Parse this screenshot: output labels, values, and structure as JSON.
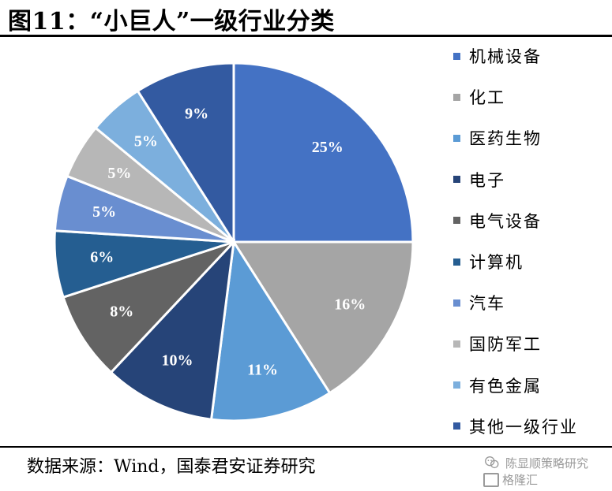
{
  "header": {
    "title": "图11：“小巨人”一级行业分类"
  },
  "chart_data": {
    "type": "pie",
    "categories": [
      "机械设备",
      "化工",
      "医药生物",
      "电子",
      "电气设备",
      "计算机",
      "汽车",
      "国防军工",
      "有色金属",
      "其他一级行业"
    ],
    "values": [
      25,
      16,
      11,
      10,
      8,
      6,
      5,
      5,
      5,
      9
    ],
    "labels": [
      "25%",
      "16%",
      "11%",
      "10%",
      "8%",
      "6%",
      "5%",
      "5%",
      "5%",
      "9%"
    ],
    "colors": [
      "#4472C4",
      "#A5A5A5",
      "#5B9BD5",
      "#264478",
      "#636363",
      "#255E91",
      "#698ED0",
      "#B7B7B7",
      "#7CAFDD",
      "#335AA1"
    ],
    "label_colors": [
      "#ffffff",
      "#ffffff",
      "#ffffff",
      "#ffffff",
      "#ffffff",
      "#ffffff",
      "#ffffff",
      "#ffffff",
      "#ffffff",
      "#ffffff"
    ],
    "legend_position": "right"
  },
  "footer": {
    "source": "数据来源：Wind，国泰君安证券研究",
    "watermark_line1": "陈显顺策略研究",
    "watermark_line2": "格隆汇"
  }
}
